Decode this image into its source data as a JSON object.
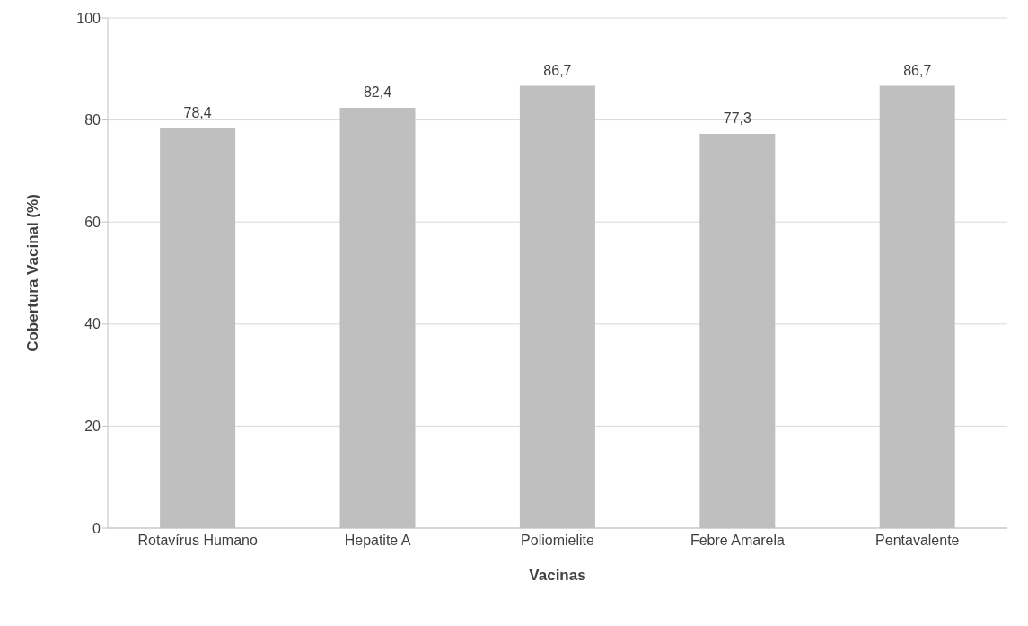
{
  "chart_data": {
    "type": "bar",
    "xlabel": "Vacinas",
    "ylabel": "Cobertura Vacinal (%)",
    "categories": [
      "Rotavírus Humano",
      "Hepatite A",
      "Poliomielite",
      "Febre Amarela",
      "Pentavalente"
    ],
    "values": [
      78.4,
      82.4,
      86.7,
      77.3,
      86.7
    ],
    "value_labels": [
      "78,4",
      "82,4",
      "86,7",
      "77,3",
      "86,7"
    ],
    "color": "#bfbfbf",
    "ylim": [
      0,
      100
    ],
    "yticks": [
      0,
      20,
      40,
      60,
      80,
      100
    ],
    "grid": "y"
  }
}
